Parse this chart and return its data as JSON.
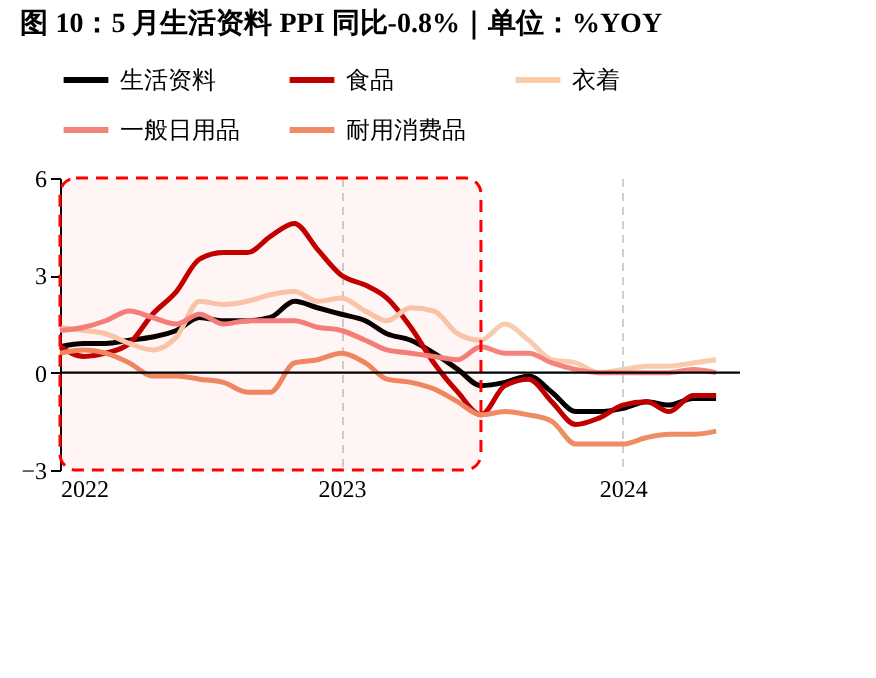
{
  "chart_data": {
    "type": "line",
    "title": "图 10：5 月生活资料 PPI 同比-0.8%｜单位：%YOY",
    "x": [
      "2022-01",
      "2022-02",
      "2022-03",
      "2022-04",
      "2022-05",
      "2022-06",
      "2022-07",
      "2022-08",
      "2022-09",
      "2022-10",
      "2022-11",
      "2022-12",
      "2023-01",
      "2023-02",
      "2023-03",
      "2023-04",
      "2023-05",
      "2023-06",
      "2023-07",
      "2023-08",
      "2023-09",
      "2023-10",
      "2023-11",
      "2023-12",
      "2024-01",
      "2024-02",
      "2024-03",
      "2024-04",
      "2024-05"
    ],
    "series": [
      {
        "name": "生活资料",
        "color": "#000000",
        "values": [
          0.8,
          0.9,
          0.9,
          1.0,
          1.1,
          1.3,
          1.7,
          1.6,
          1.6,
          1.7,
          2.2,
          2.0,
          1.8,
          1.6,
          1.2,
          1.0,
          0.6,
          0.1,
          -0.4,
          -0.3,
          -0.1,
          -0.6,
          -1.2,
          -1.2,
          -1.1,
          -0.9,
          -1.0,
          -0.8,
          -0.8
        ]
      },
      {
        "name": "食品",
        "color": "#c00000",
        "values": [
          0.8,
          0.5,
          0.6,
          0.9,
          1.8,
          2.5,
          3.5,
          3.7,
          3.7,
          4.2,
          4.6,
          3.8,
          3.0,
          2.7,
          2.3,
          1.4,
          0.3,
          -0.6,
          -1.3,
          -0.4,
          -0.2,
          -0.9,
          -1.6,
          -1.4,
          -1.0,
          -0.9,
          -1.2,
          -0.7,
          -0.7
        ]
      },
      {
        "name": "衣着",
        "color": "#f8cbad",
        "values": [
          1.4,
          1.3,
          1.2,
          0.9,
          0.7,
          1.1,
          2.2,
          2.1,
          2.2,
          2.4,
          2.5,
          2.2,
          2.3,
          1.9,
          1.6,
          2.0,
          1.9,
          1.2,
          1.0,
          1.5,
          1.0,
          0.4,
          0.3,
          0.0,
          0.1,
          0.2,
          0.2,
          0.3,
          0.4
        ]
      },
      {
        "name": "一般日用品",
        "color": "#f4837d",
        "values": [
          1.3,
          1.4,
          1.6,
          1.9,
          1.7,
          1.5,
          1.8,
          1.5,
          1.6,
          1.6,
          1.6,
          1.4,
          1.3,
          1.0,
          0.7,
          0.6,
          0.5,
          0.4,
          0.8,
          0.6,
          0.6,
          0.3,
          0.1,
          0.0,
          0.0,
          0.0,
          0.0,
          0.1,
          0.0
        ]
      },
      {
        "name": "耐用消费品",
        "color": "#f08c64",
        "values": [
          0.6,
          0.7,
          0.6,
          0.3,
          -0.1,
          -0.1,
          -0.2,
          -0.3,
          -0.6,
          -0.6,
          0.3,
          0.4,
          0.6,
          0.3,
          -0.2,
          -0.3,
          -0.5,
          -0.9,
          -1.3,
          -1.2,
          -1.3,
          -1.5,
          -2.2,
          -2.2,
          -2.2,
          -2.0,
          -1.9,
          -1.9,
          -1.8
        ]
      }
    ],
    "xlim": [
      "2022-01",
      "2024-06"
    ],
    "xticks": [
      "2022",
      "2023",
      "2024"
    ],
    "ylim": [
      -3,
      6
    ],
    "yticks": [
      -3,
      0,
      3,
      6
    ],
    "ref_lines": [
      {
        "axis": "y",
        "value": 0,
        "color": "#000000"
      }
    ],
    "bands": [
      {
        "axis": "x",
        "from": "2022-01",
        "to": "2023-07",
        "color": "#ff0000"
      }
    ],
    "grid": "x",
    "legend": "top",
    "line_style": "solid",
    "marker": "none"
  }
}
